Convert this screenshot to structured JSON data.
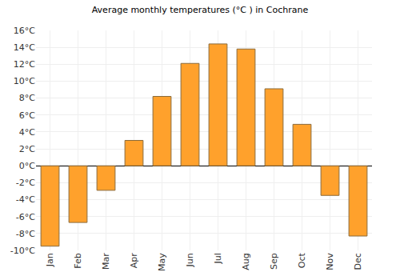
{
  "chart_data": {
    "type": "bar",
    "title": "Average monthly temperatures (°C ) in Cochrane",
    "categories": [
      "Jan",
      "Feb",
      "Mar",
      "Apr",
      "May",
      "Jun",
      "Jul",
      "Aug",
      "Sep",
      "Oct",
      "Nov",
      "Dec"
    ],
    "values": [
      -9.5,
      -6.7,
      -2.9,
      3.0,
      8.2,
      12.1,
      14.4,
      13.8,
      9.1,
      4.9,
      -3.5,
      -8.3
    ],
    "color": "#ffa12c",
    "ylim": [
      -10,
      16
    ],
    "yticks": [
      {
        "value": -10,
        "label": "-10°C"
      },
      {
        "value": -8,
        "label": "-8°C"
      },
      {
        "value": -6,
        "label": "-6°C"
      },
      {
        "value": -4,
        "label": "-4°C"
      },
      {
        "value": -2,
        "label": "-2°C"
      },
      {
        "value": 0,
        "label": "0°C"
      },
      {
        "value": 2,
        "label": "2°C"
      },
      {
        "value": 4,
        "label": "4°C"
      },
      {
        "value": 6,
        "label": "6°C"
      },
      {
        "value": 8,
        "label": "8°C"
      },
      {
        "value": 10,
        "label": "10°C"
      },
      {
        "value": 12,
        "label": "12°C"
      },
      {
        "value": 14,
        "label": "14°C"
      },
      {
        "value": 16,
        "label": "16°C"
      }
    ],
    "grid": true
  }
}
